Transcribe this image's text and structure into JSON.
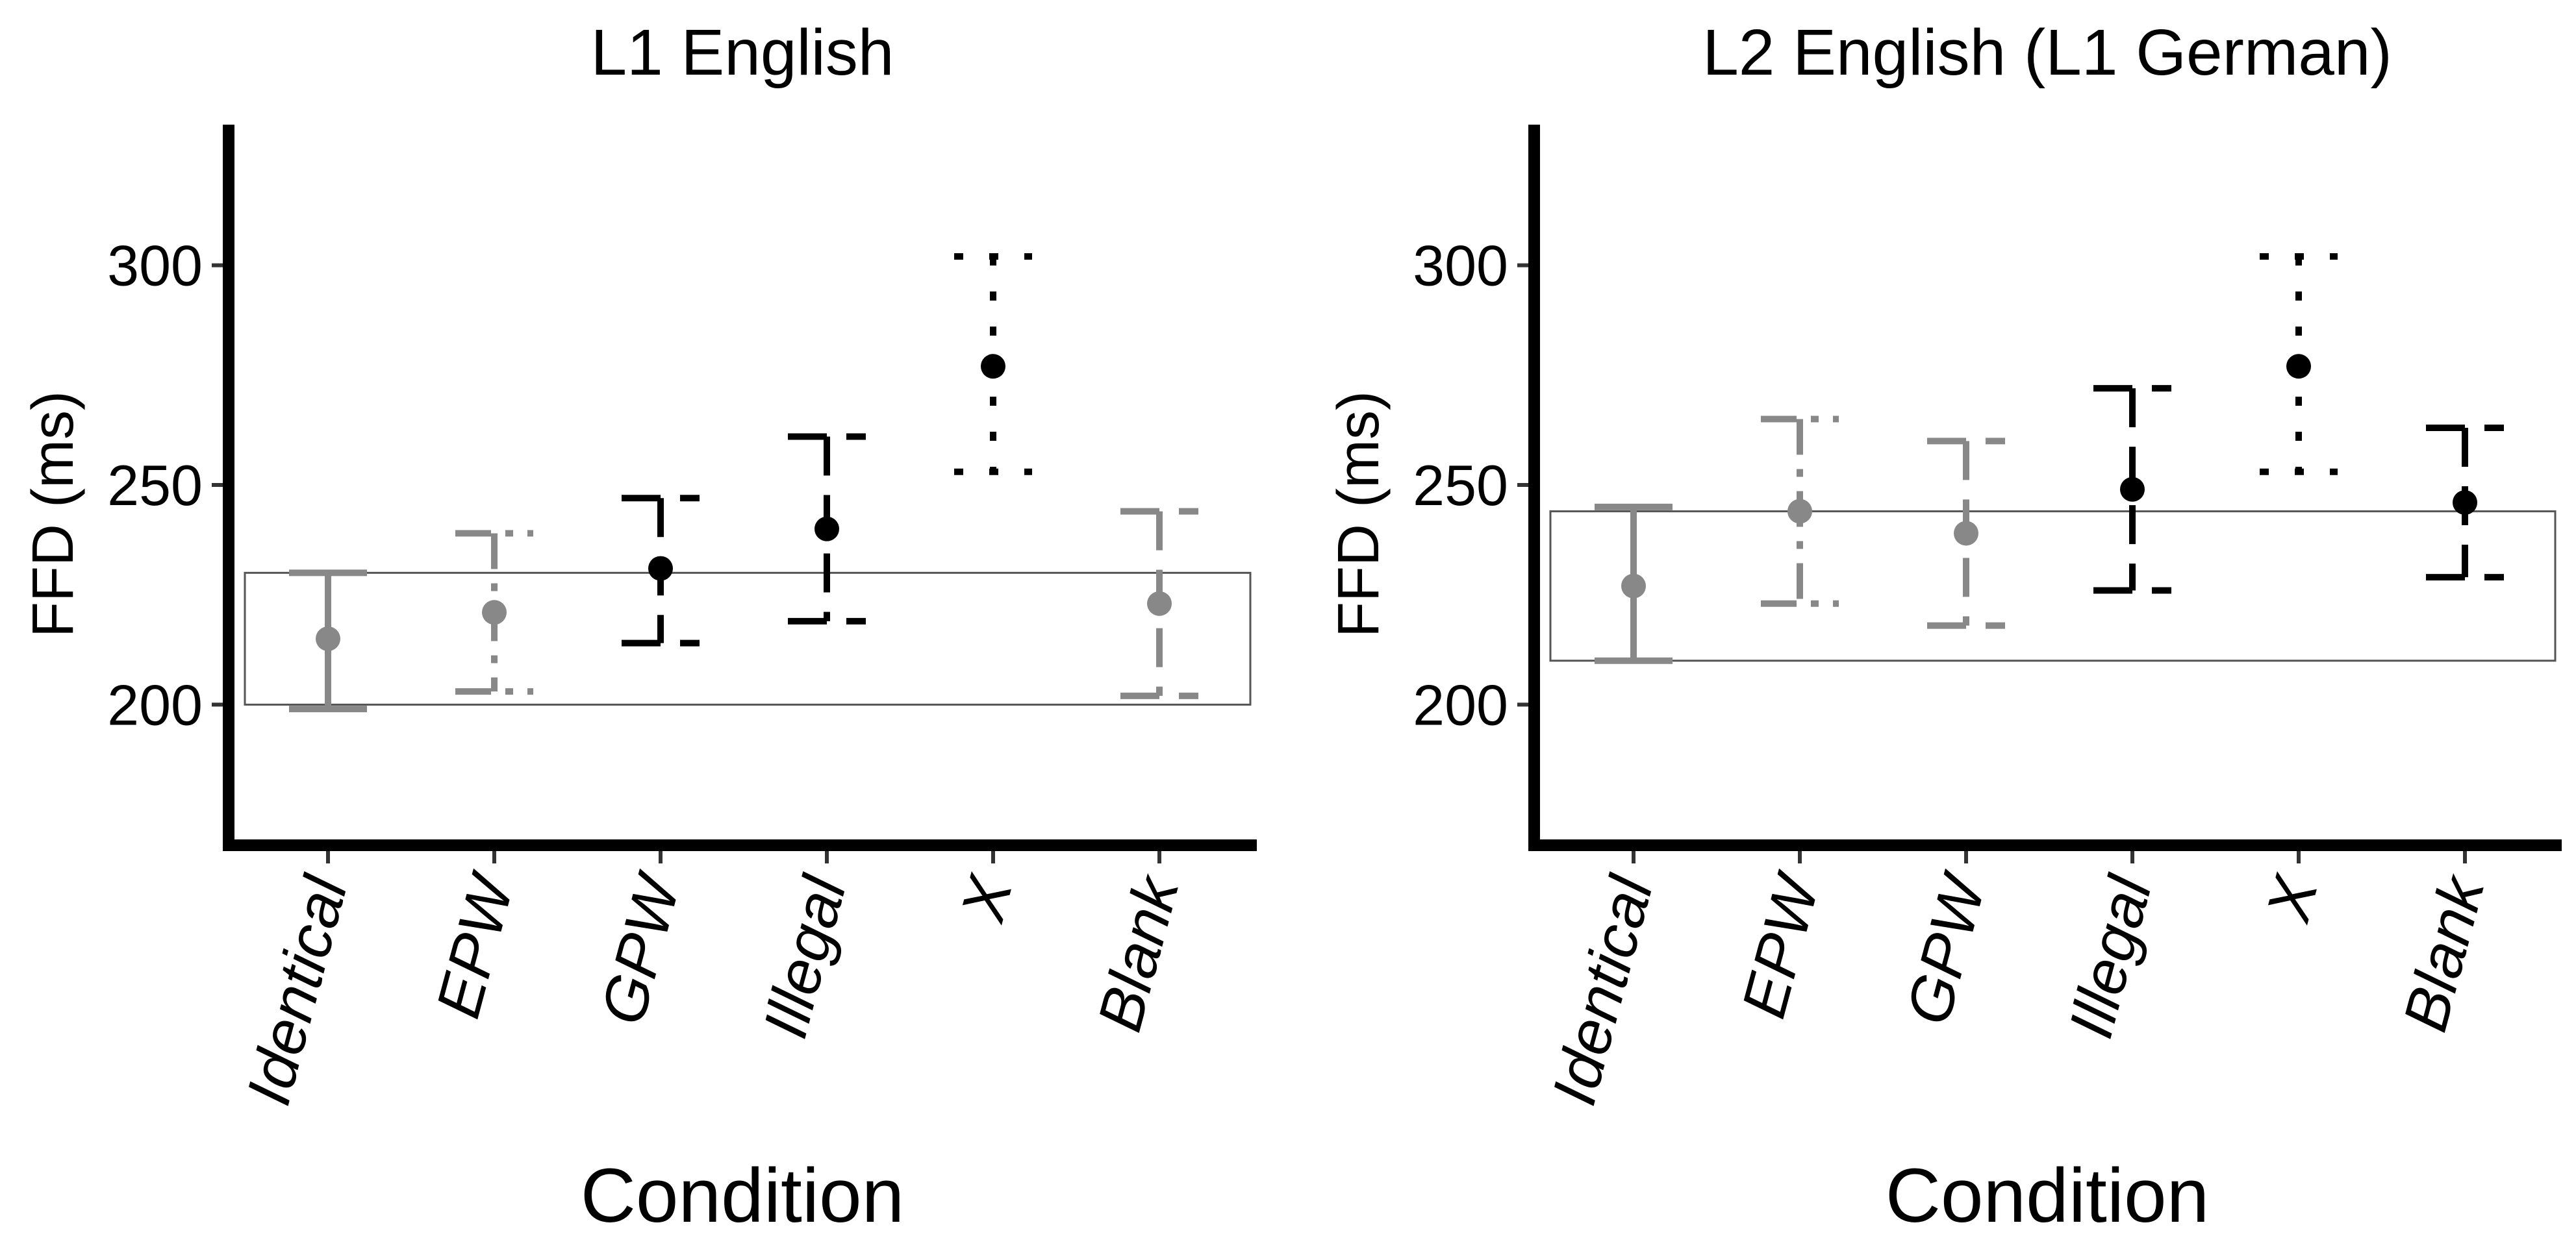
{
  "chart_data": [
    {
      "type": "errorbar",
      "title": "L1 English",
      "xlabel": "Condition",
      "ylabel": "FFD (ms)",
      "ylim": [
        168,
        332
      ],
      "yticks": [
        200,
        250,
        300
      ],
      "grid": false,
      "categories": [
        "Identical",
        "EPW",
        "GPW",
        "Illegal",
        "X",
        "Blank"
      ],
      "points": [
        {
          "category": "Identical",
          "mean": 215,
          "lower": 199,
          "upper": 230,
          "color": "#888888",
          "line": "solid"
        },
        {
          "category": "EPW",
          "mean": 221,
          "lower": 203,
          "upper": 239,
          "color": "#888888",
          "line": "dashdot"
        },
        {
          "category": "GPW",
          "mean": 231,
          "lower": 214,
          "upper": 247,
          "color": "#000000",
          "line": "longdash"
        },
        {
          "category": "Illegal",
          "mean": 240,
          "lower": 219,
          "upper": 261,
          "color": "#000000",
          "line": "longdash"
        },
        {
          "category": "X",
          "mean": 277,
          "lower": 253,
          "upper": 302,
          "color": "#000000",
          "line": "dotted"
        },
        {
          "category": "Blank",
          "mean": 223,
          "lower": 202,
          "upper": 244,
          "color": "#888888",
          "line": "longdash"
        }
      ],
      "reference_band": {
        "ymin": 200,
        "ymax": 230
      }
    },
    {
      "type": "errorbar",
      "title": "L2 English (L1 German)",
      "xlabel": "Condition",
      "ylabel": "FFD (ms)",
      "ylim": [
        168,
        332
      ],
      "yticks": [
        200,
        250,
        300
      ],
      "grid": false,
      "categories": [
        "Identical",
        "EPW",
        "GPW",
        "Illegal",
        "X",
        "Blank"
      ],
      "points": [
        {
          "category": "Identical",
          "mean": 227,
          "lower": 210,
          "upper": 245,
          "color": "#888888",
          "line": "solid"
        },
        {
          "category": "EPW",
          "mean": 244,
          "lower": 223,
          "upper": 265,
          "color": "#888888",
          "line": "dashdot"
        },
        {
          "category": "GPW",
          "mean": 239,
          "lower": 218,
          "upper": 260,
          "color": "#888888",
          "line": "longdash"
        },
        {
          "category": "Illegal",
          "mean": 249,
          "lower": 226,
          "upper": 272,
          "color": "#000000",
          "line": "longdash"
        },
        {
          "category": "X",
          "mean": 277,
          "lower": 253,
          "upper": 302,
          "color": "#000000",
          "line": "dotted"
        },
        {
          "category": "Blank",
          "mean": 246,
          "lower": 229,
          "upper": 263,
          "color": "#000000",
          "line": "longdash"
        }
      ],
      "reference_band": {
        "ymin": 210,
        "ymax": 244
      }
    }
  ]
}
